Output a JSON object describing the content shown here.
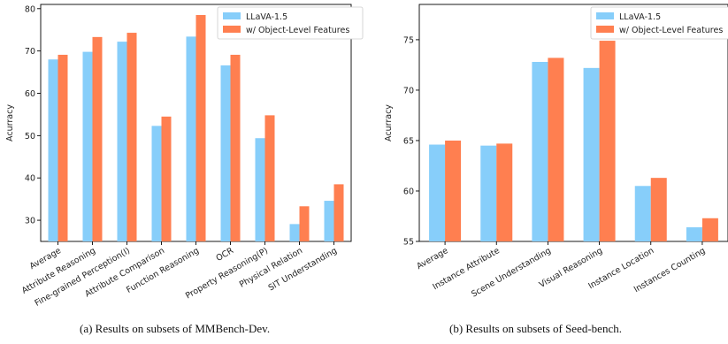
{
  "colors": {
    "baseline": "#87CEFA",
    "ours": "#FF7F50"
  },
  "chart_data": [
    {
      "type": "bar",
      "ylabel": "Acurracy",
      "ylim": [
        25,
        81
      ],
      "yticks": [
        30,
        40,
        50,
        60,
        70,
        80
      ],
      "legend_position": "top-right",
      "categories": [
        "Average",
        "Attribute Reasoning",
        "Fine-grained Perception(I)",
        "Attribute Comparison",
        "Function Reasoning",
        "OCR",
        "Property Reasoning(P)",
        "Physical Relation",
        "SIT Understanding"
      ],
      "series": [
        {
          "name": "LLaVA-1.5",
          "values": [
            68.0,
            69.8,
            72.2,
            52.3,
            73.4,
            66.6,
            49.4,
            29.1,
            34.6
          ]
        },
        {
          "name": "w/ Object-Level Features",
          "values": [
            69.1,
            73.3,
            74.3,
            54.5,
            78.5,
            69.1,
            54.8,
            33.3,
            38.5
          ]
        }
      ],
      "caption": "(a) Results on subsets of MMBench-Dev."
    },
    {
      "type": "bar",
      "ylabel": "Acurracy",
      "ylim": [
        55,
        78.5
      ],
      "yticks": [
        55,
        60,
        65,
        70,
        75
      ],
      "legend_position": "top-right",
      "categories": [
        "Average",
        "Instance Attribute",
        "Scene Understanding",
        "Visual Reasoning",
        "Instance Location",
        "Instances Counting"
      ],
      "series": [
        {
          "name": "LLaVA-1.5",
          "values": [
            64.6,
            64.5,
            72.8,
            72.2,
            60.5,
            56.4
          ]
        },
        {
          "name": "w/ Object-Level Features",
          "values": [
            65.0,
            64.7,
            73.2,
            74.9,
            61.3,
            57.3
          ]
        }
      ],
      "caption": "(b) Results on subsets of Seed-bench."
    }
  ]
}
